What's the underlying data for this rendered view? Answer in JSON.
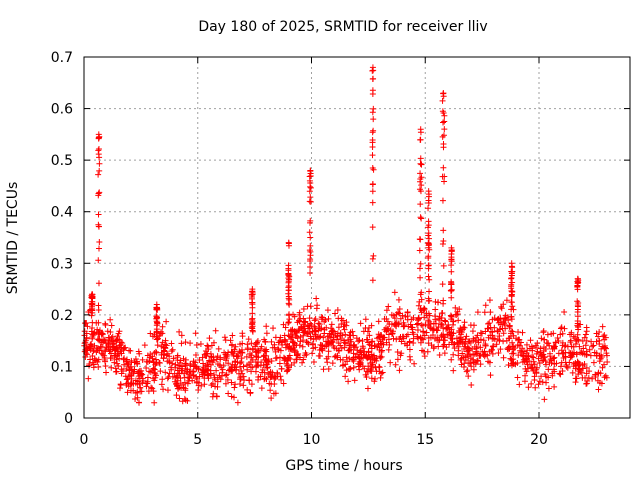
{
  "chart_data": {
    "type": "scatter",
    "title": "Day 180 of 2025, SRMTID for receiver lliv",
    "xlabel": "GPS time / hours",
    "ylabel": "SRMTID / TECUs",
    "xlim": [
      0,
      24
    ],
    "ylim": [
      0,
      0.7
    ],
    "xticks": [
      0,
      5,
      10,
      15,
      20
    ],
    "yticks": [
      0,
      0.1,
      0.2,
      0.3,
      0.4,
      0.5,
      0.6,
      0.7
    ],
    "xtick_labels": [
      "0",
      "5",
      "10",
      "15",
      "20"
    ],
    "ytick_labels": [
      "0",
      "0.1",
      "0.2",
      "0.3",
      "0.4",
      "0.5",
      "0.6",
      "0.7"
    ],
    "grid": true,
    "marker": "+",
    "series_color": "#ff0000",
    "baseline": {
      "x": [
        0,
        0.5,
        1,
        1.5,
        2,
        2.5,
        3,
        3.5,
        4,
        4.5,
        5,
        5.5,
        6,
        6.5,
        7,
        7.5,
        8,
        8.5,
        9,
        9.5,
        10,
        10.5,
        11,
        11.5,
        12,
        12.5,
        13,
        13.5,
        14,
        14.5,
        15,
        15.5,
        16,
        16.5,
        17,
        17.5,
        18,
        18.5,
        19,
        19.5,
        20,
        20.5,
        21,
        21.5,
        22,
        22.5,
        23
      ],
      "y": [
        0.15,
        0.14,
        0.15,
        0.13,
        0.09,
        0.08,
        0.1,
        0.12,
        0.09,
        0.09,
        0.1,
        0.11,
        0.1,
        0.11,
        0.1,
        0.12,
        0.11,
        0.1,
        0.14,
        0.16,
        0.17,
        0.16,
        0.15,
        0.14,
        0.14,
        0.12,
        0.13,
        0.17,
        0.16,
        0.17,
        0.18,
        0.17,
        0.16,
        0.15,
        0.13,
        0.15,
        0.16,
        0.18,
        0.13,
        0.11,
        0.11,
        0.12,
        0.14,
        0.12,
        0.11,
        0.12,
        0.13
      ],
      "spread": 0.035,
      "points_per_hour": 80
    },
    "spikes": [
      {
        "x": 0.35,
        "peak": 0.24,
        "width": 0.05
      },
      {
        "x": 0.65,
        "peak": 0.55,
        "width": 0.06
      },
      {
        "x": 3.2,
        "peak": 0.22,
        "width": 0.05
      },
      {
        "x": 7.4,
        "peak": 0.25,
        "width": 0.05
      },
      {
        "x": 9.0,
        "peak": 0.34,
        "width": 0.05
      },
      {
        "x": 9.95,
        "peak": 0.48,
        "width": 0.06
      },
      {
        "x": 12.7,
        "peak": 0.68,
        "width": 0.06
      },
      {
        "x": 14.8,
        "peak": 0.56,
        "width": 0.08
      },
      {
        "x": 15.15,
        "peak": 0.44,
        "width": 0.06
      },
      {
        "x": 15.8,
        "peak": 0.63,
        "width": 0.08
      },
      {
        "x": 16.15,
        "peak": 0.33,
        "width": 0.05
      },
      {
        "x": 18.8,
        "peak": 0.3,
        "width": 0.06
      },
      {
        "x": 21.7,
        "peak": 0.27,
        "width": 0.05
      }
    ]
  }
}
